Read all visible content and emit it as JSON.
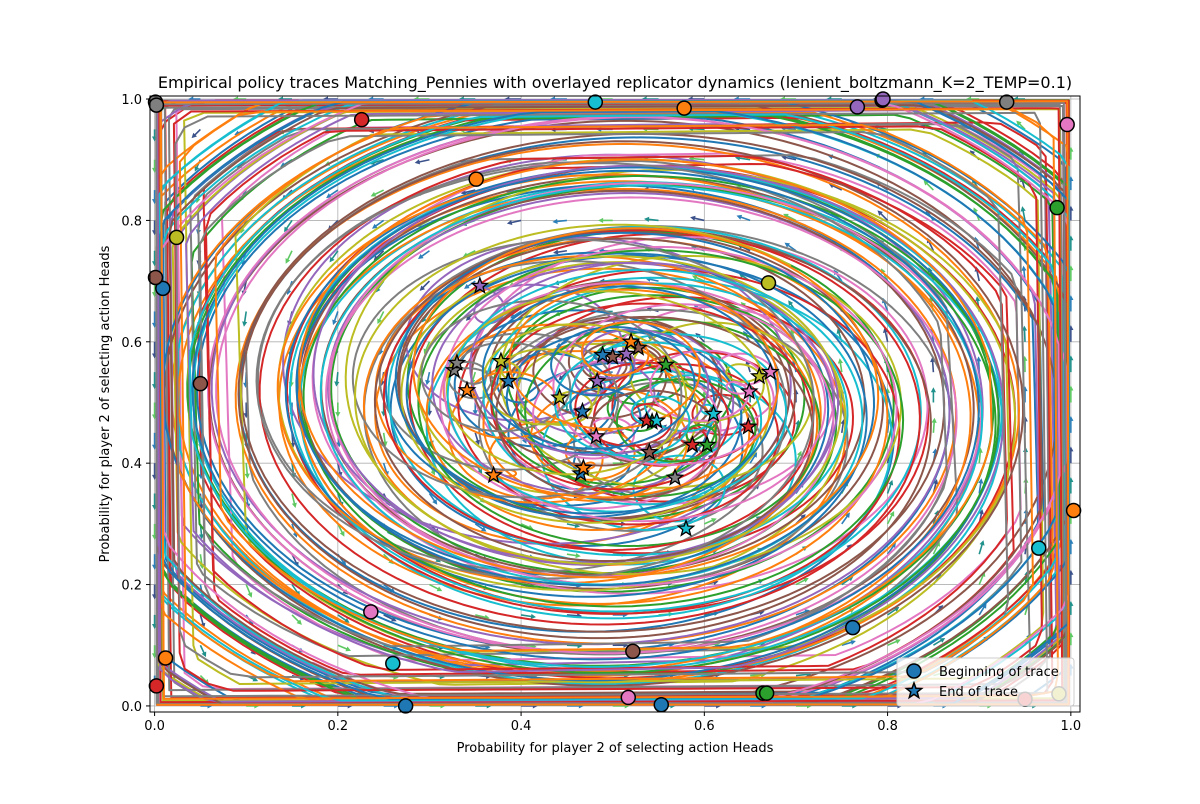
{
  "chart_data": {
    "type": "scatter",
    "title": "Empirical policy traces Matching_Pennies with overlayed replicator dynamics (lenient_boltzmann_K=2_TEMP=0.1)",
    "xlabel": "Probability for player 2 of selecting action Heads",
    "ylabel": "Probability for player 2 of selecting action Heads",
    "xlim": [
      -0.005,
      1.01
    ],
    "ylim": [
      -0.01,
      1.005
    ],
    "xticks": [
      "0.0",
      "0.2",
      "0.4",
      "0.6",
      "0.8",
      "1.0"
    ],
    "yticks": [
      "0.0",
      "0.2",
      "0.4",
      "0.6",
      "0.8",
      "1.0"
    ],
    "grid": true,
    "legend": {
      "placement": "lower-right",
      "entries": [
        {
          "label": "Beginning of trace",
          "marker": "circle",
          "color": "#1f77b4"
        },
        {
          "label": "End of trace",
          "marker": "star",
          "color": "#1f77b4"
        }
      ]
    },
    "palette": [
      "#1f77b4",
      "#ff7f0e",
      "#2ca02c",
      "#d62728",
      "#9467bd",
      "#8c564b",
      "#e377c2",
      "#7f7f7f",
      "#bcbd22",
      "#17becf"
    ],
    "quiver_colors": [
      "#3b528b",
      "#21918c",
      "#5ec962",
      "#2c7fb8"
    ],
    "traces": [
      {
        "start": [
          0.274,
          0.0
        ],
        "end": [
          0.465,
          0.383
        ]
      },
      {
        "start": [
          0.578,
          0.985
        ],
        "end": [
          0.37,
          0.38
        ]
      },
      {
        "start": [
          0.664,
          0.021
        ],
        "end": [
          0.558,
          0.562
        ]
      },
      {
        "start": [
          0.226,
          0.966
        ],
        "end": [
          0.648,
          0.46
        ]
      },
      {
        "start": [
          0.794,
          0.998
        ],
        "end": [
          0.355,
          0.692
        ]
      },
      {
        "start": [
          0.522,
          0.09
        ],
        "end": [
          0.528,
          0.59
        ]
      },
      {
        "start": [
          0.996,
          0.958
        ],
        "end": [
          0.672,
          0.55
        ]
      },
      {
        "start": [
          0.93,
          0.995
        ],
        "end": [
          0.568,
          0.376
        ]
      },
      {
        "start": [
          0.024,
          0.772
        ],
        "end": [
          0.442,
          0.508
        ]
      },
      {
        "start": [
          0.481,
          0.995
        ],
        "end": [
          0.58,
          0.292
        ]
      },
      {
        "start": [
          0.009,
          0.688
        ],
        "end": [
          0.386,
          0.535
        ]
      },
      {
        "start": [
          0.351,
          0.868
        ],
        "end": [
          0.468,
          0.392
        ]
      },
      {
        "start": [
          0.985,
          0.821
        ],
        "end": [
          0.543,
          0.468
        ]
      },
      {
        "start": [
          0.002,
          0.033
        ],
        "end": [
          0.587,
          0.43
        ]
      },
      {
        "start": [
          0.767,
          0.987
        ],
        "end": [
          0.483,
          0.535
        ]
      },
      {
        "start": [
          0.05,
          0.531
        ],
        "end": [
          0.5,
          0.575
        ]
      },
      {
        "start": [
          0.236,
          0.155
        ],
        "end": [
          0.482,
          0.444
        ]
      },
      {
        "start": [
          0.001,
          0.995
        ],
        "end": [
          0.327,
          0.553
        ]
      },
      {
        "start": [
          0.987,
          0.02
        ],
        "end": [
          0.66,
          0.543
        ]
      },
      {
        "start": [
          0.26,
          0.07
        ],
        "end": [
          0.61,
          0.481
        ]
      },
      {
        "start": [
          0.762,
          0.129
        ],
        "end": [
          0.467,
          0.485
        ]
      },
      {
        "start": [
          1.003,
          0.322
        ],
        "end": [
          0.341,
          0.52
        ]
      },
      {
        "start": [
          0.668,
          0.021
        ],
        "end": [
          0.603,
          0.43
        ]
      },
      {
        "start": [
          0.95,
          0.011
        ],
        "end": [
          0.537,
          0.47
        ]
      },
      {
        "start": [
          0.795,
          1.0
        ],
        "end": [
          0.515,
          0.58
        ]
      },
      {
        "start": [
          0.001,
          0.706
        ],
        "end": [
          0.54,
          0.418
        ]
      },
      {
        "start": [
          0.517,
          0.014
        ],
        "end": [
          0.649,
          0.518
        ]
      },
      {
        "start": [
          0.002,
          0.99
        ],
        "end": [
          0.33,
          0.565
        ]
      },
      {
        "start": [
          0.67,
          0.697
        ],
        "end": [
          0.378,
          0.568
        ]
      },
      {
        "start": [
          0.965,
          0.26
        ],
        "end": [
          0.548,
          0.47
        ]
      },
      {
        "start": [
          0.553,
          0.002
        ],
        "end": [
          0.489,
          0.578
        ]
      },
      {
        "start": [
          0.012,
          0.079
        ],
        "end": [
          0.52,
          0.6
        ]
      }
    ]
  }
}
